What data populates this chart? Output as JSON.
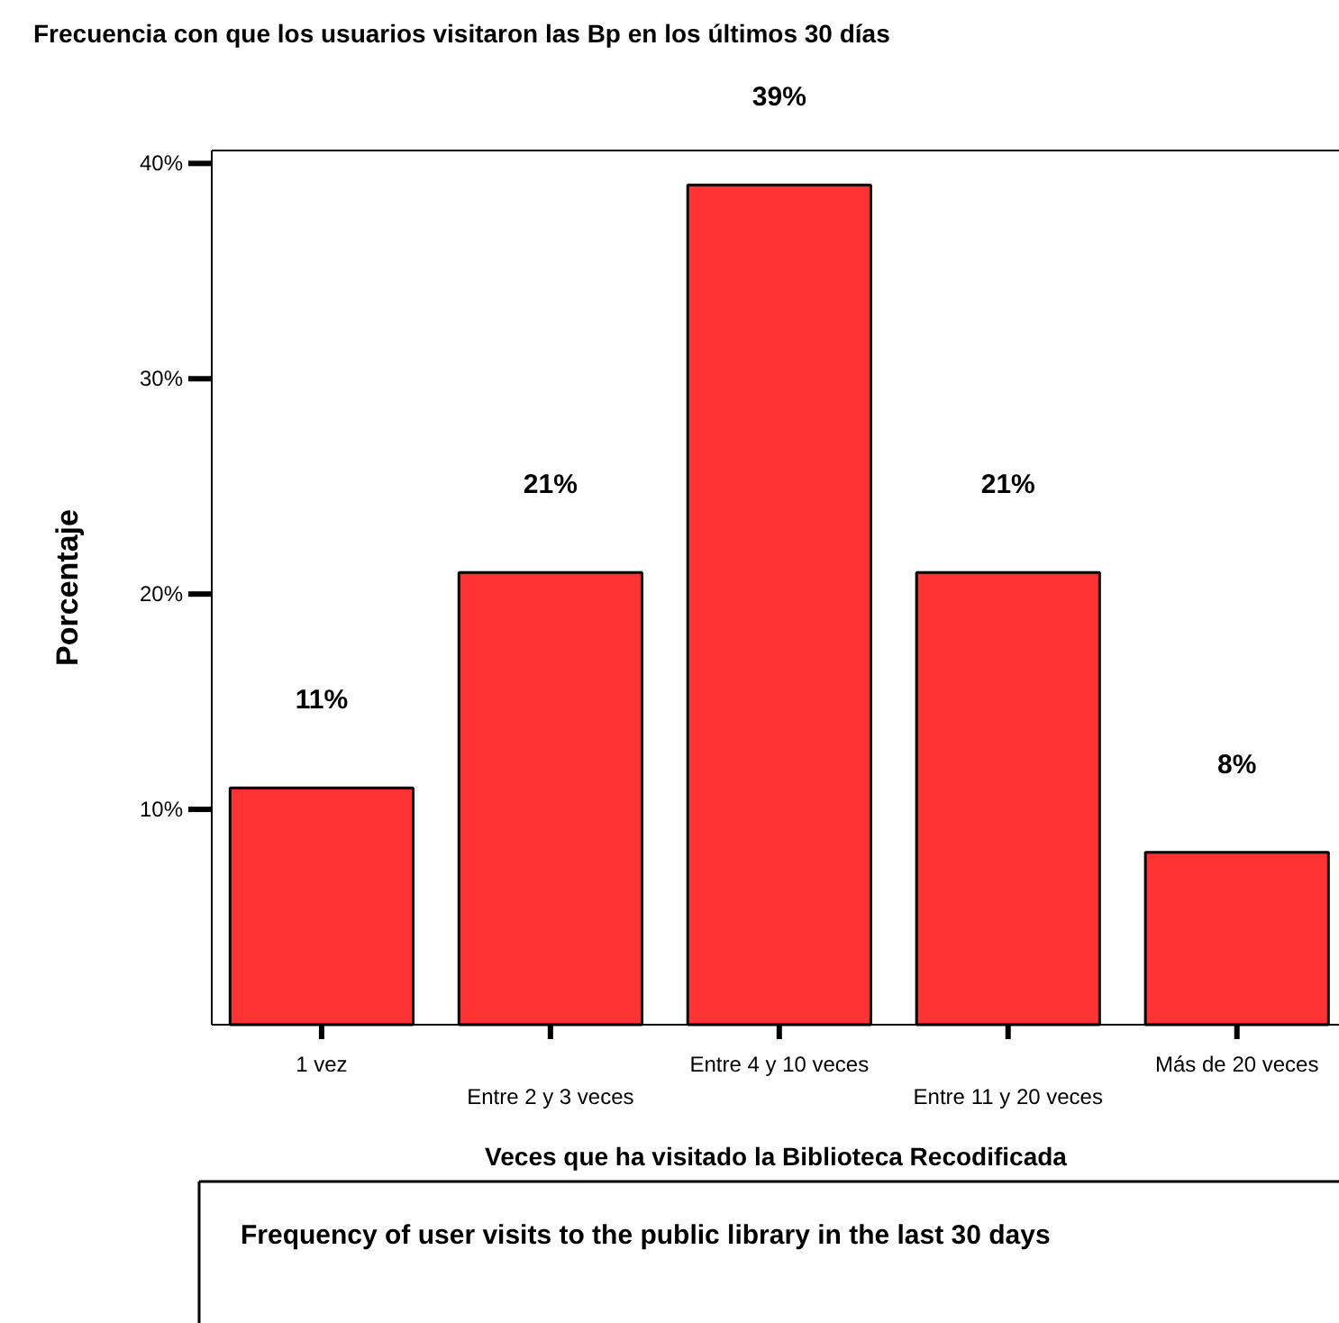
{
  "chart_data": {
    "type": "bar",
    "title": "Frecuencia con que los usuarios visitaron las Bp en los últimos 30 días",
    "xlabel": "Veces que ha visitado la Biblioteca Recodificada",
    "ylabel": "Porcentaje",
    "categories": [
      "1 vez",
      "Entre 2 y 3 veces",
      "Entre 4 y 10 veces",
      "Entre 11 y 20 veces",
      "Más de 20 veces"
    ],
    "values": [
      11,
      21,
      39,
      21,
      8
    ],
    "value_labels": [
      "11%",
      "21%",
      "39%",
      "21%",
      "8%"
    ],
    "color": "#ff3333",
    "ylim": [
      0,
      40.6
    ],
    "yticks": [
      {
        "value": 10,
        "label": "10%"
      },
      {
        "value": 20,
        "label": "20%"
      },
      {
        "value": 30,
        "label": "30%"
      },
      {
        "value": 40,
        "label": "40%"
      }
    ],
    "annotations": [
      "Frequency of user visits to the public library in the last 30 days"
    ]
  }
}
